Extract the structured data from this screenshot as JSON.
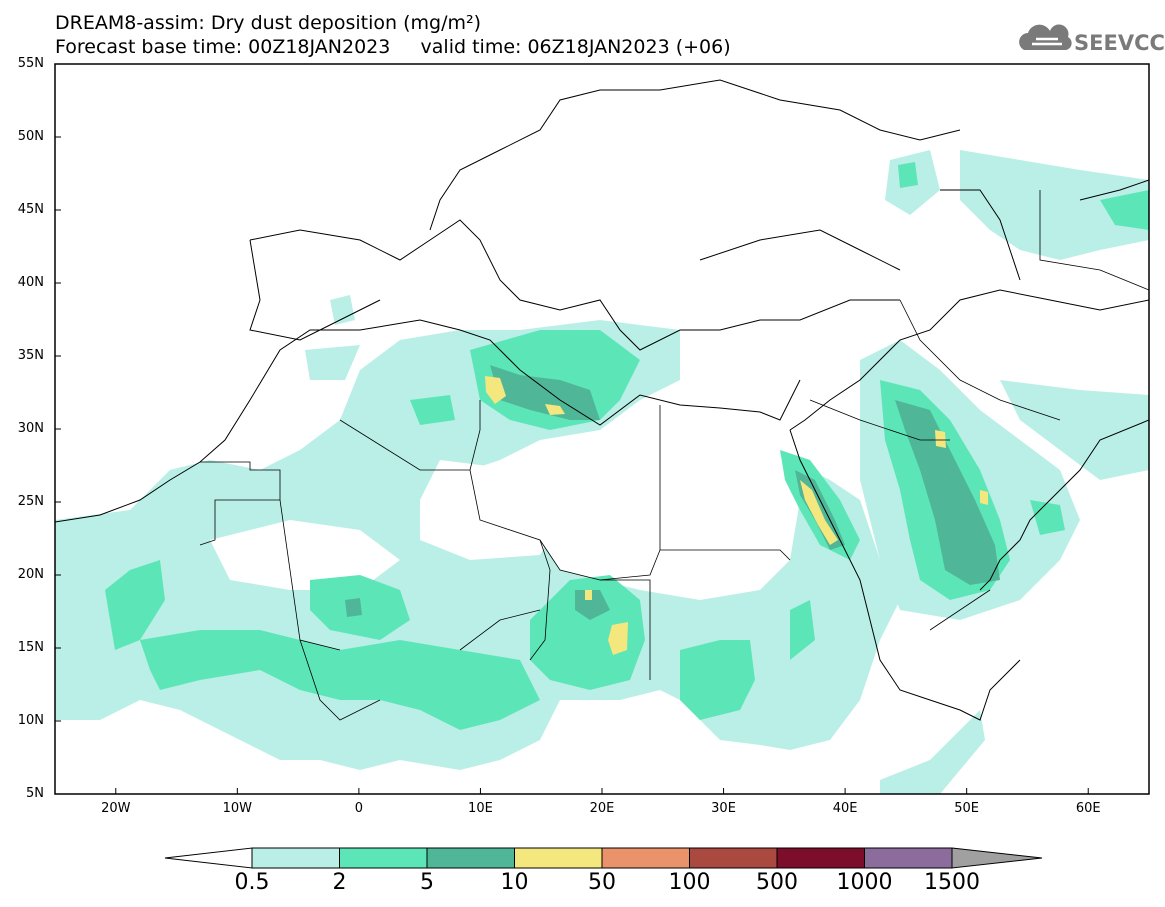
{
  "header": {
    "title_line1": "DREAM8-assim: Dry dust deposition (mg/m²)",
    "base_time_label": "Forecast base time: 00Z18JAN2023",
    "valid_time_label": "valid time: 06Z18JAN2023 (+06)",
    "logo_text": "SEEVCCC"
  },
  "map": {
    "lat_labels": [
      "55N",
      "50N",
      "45N",
      "40N",
      "35N",
      "30N",
      "25N",
      "20N",
      "15N",
      "10N",
      "5N"
    ],
    "lon_labels": [
      "20W",
      "10W",
      "0",
      "10E",
      "20E",
      "30E",
      "40E",
      "50E",
      "60E"
    ],
    "lat_range": [
      5,
      55
    ],
    "lon_range": [
      -25,
      65
    ]
  },
  "legend": {
    "levels": [
      "0.5",
      "2",
      "5",
      "10",
      "50",
      "100",
      "500",
      "1000",
      "1500"
    ],
    "colors": [
      "#ffffff",
      "#b9efe6",
      "#5ce6b8",
      "#4fb797",
      "#f3e77e",
      "#ea936a",
      "#a9493f",
      "#7c0e2c",
      "#8c6c9c",
      "#a0a0a0"
    ]
  }
}
